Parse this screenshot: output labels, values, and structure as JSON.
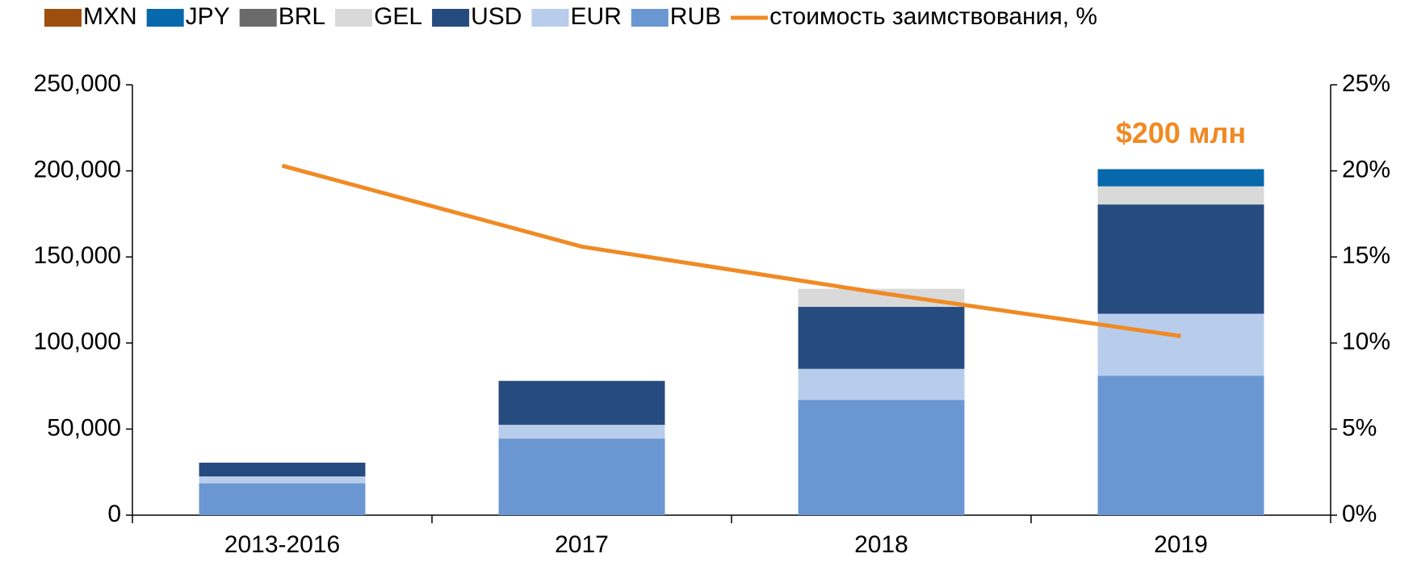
{
  "chart_data": {
    "type": "bar",
    "categories": [
      "2013-2016",
      "2017",
      "2018",
      "2019"
    ],
    "series": [
      {
        "name": "MXN",
        "color": "#9c4f0f",
        "values": [
          0,
          0,
          0,
          0
        ]
      },
      {
        "name": "JPY",
        "color": "#0868ac",
        "values": [
          0,
          0,
          0,
          10000
        ]
      },
      {
        "name": "BRL",
        "color": "#6b6b6b",
        "values": [
          0,
          0,
          0,
          0
        ]
      },
      {
        "name": "GEL",
        "color": "#d9d9d9",
        "values": [
          0,
          0,
          10500,
          10500
        ]
      },
      {
        "name": "USD",
        "color": "#264b7f",
        "values": [
          8000,
          25500,
          36000,
          63500
        ]
      },
      {
        "name": "EUR",
        "color": "#b8cdec",
        "values": [
          4000,
          8000,
          18000,
          36000
        ]
      },
      {
        "name": "RUB",
        "color": "#6a97d2",
        "values": [
          18500,
          44500,
          67000,
          81000
        ]
      },
      {
        "name": "стоимость заимствования, %",
        "color": "#f08a24",
        "type": "line",
        "axis": "y2",
        "values": [
          20.3,
          15.6,
          12.9,
          10.4
        ]
      }
    ],
    "annotations": [
      "$200 млн"
    ],
    "ylim": [
      0,
      250000
    ],
    "yticks": [
      0,
      {
        "value": 50000,
        "label": "50,000"
      },
      {
        "value": 100000,
        "label": "100,000"
      },
      {
        "value": 150000,
        "label": "150,000"
      },
      {
        "value": 200000,
        "label": "200,000"
      },
      {
        "value": 250000,
        "label": "250,000"
      }
    ],
    "y2lim": [
      0,
      25
    ],
    "y2ticks": [
      {
        "value": 0,
        "label": "0%"
      },
      {
        "value": 5,
        "label": "5%"
      },
      {
        "value": 10,
        "label": "10%"
      },
      {
        "value": 15,
        "label": "15%"
      },
      {
        "value": 20,
        "label": "20%"
      },
      {
        "value": 25,
        "label": "25%"
      }
    ],
    "stacked": true,
    "legend": "top"
  }
}
